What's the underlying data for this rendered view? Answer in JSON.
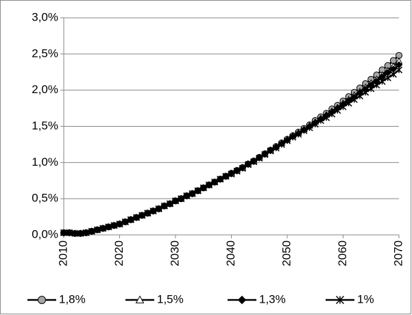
{
  "chart_data": {
    "type": "line",
    "x": [
      2010,
      2011,
      2012,
      2013,
      2014,
      2015,
      2016,
      2017,
      2018,
      2019,
      2020,
      2021,
      2022,
      2023,
      2024,
      2025,
      2026,
      2027,
      2028,
      2029,
      2030,
      2031,
      2032,
      2033,
      2034,
      2035,
      2036,
      2037,
      2038,
      2039,
      2040,
      2041,
      2042,
      2043,
      2044,
      2045,
      2046,
      2047,
      2048,
      2049,
      2050,
      2051,
      2052,
      2053,
      2054,
      2055,
      2056,
      2057,
      2058,
      2059,
      2060,
      2061,
      2062,
      2063,
      2064,
      2065,
      2066,
      2067,
      2068,
      2069,
      2070
    ],
    "xlim": [
      2010,
      2070
    ],
    "xticks": [
      2010,
      2020,
      2030,
      2040,
      2050,
      2060,
      2070
    ],
    "ylim": [
      0,
      3
    ],
    "yticks": [
      {
        "value": 0,
        "label": "0,0%"
      },
      {
        "value": 0.5,
        "label": "0,5%"
      },
      {
        "value": 1,
        "label": "1,0%"
      },
      {
        "value": 1.5,
        "label": "1,5%"
      },
      {
        "value": 2,
        "label": "2,0%"
      },
      {
        "value": 2.5,
        "label": "2,5%"
      },
      {
        "value": 3,
        "label": "3,0%"
      }
    ],
    "grid": true,
    "legend": "bottom",
    "series": [
      {
        "name": "1,8%",
        "color": "#000000",
        "marker": "circle",
        "marker_fill": "#a6a6a6",
        "values": [
          0.03,
          0.03,
          0.02,
          0.02,
          0.03,
          0.05,
          0.07,
          0.09,
          0.11,
          0.13,
          0.15,
          0.18,
          0.21,
          0.24,
          0.27,
          0.3,
          0.33,
          0.36,
          0.4,
          0.43,
          0.47,
          0.5,
          0.54,
          0.57,
          0.61,
          0.65,
          0.69,
          0.73,
          0.77,
          0.81,
          0.85,
          0.89,
          0.93,
          0.98,
          1.02,
          1.07,
          1.12,
          1.17,
          1.22,
          1.27,
          1.32,
          1.37,
          1.42,
          1.47,
          1.52,
          1.58,
          1.63,
          1.68,
          1.74,
          1.79,
          1.85,
          1.91,
          1.97,
          2.03,
          2.09,
          2.15,
          2.21,
          2.28,
          2.34,
          2.41,
          2.48
        ]
      },
      {
        "name": "1,5%",
        "color": "#000000",
        "marker": "triangle",
        "marker_fill": "#ffffff",
        "values": [
          0.03,
          0.03,
          0.02,
          0.02,
          0.03,
          0.05,
          0.07,
          0.09,
          0.11,
          0.13,
          0.15,
          0.18,
          0.21,
          0.24,
          0.27,
          0.3,
          0.33,
          0.36,
          0.4,
          0.43,
          0.47,
          0.5,
          0.54,
          0.57,
          0.61,
          0.65,
          0.69,
          0.73,
          0.77,
          0.81,
          0.85,
          0.89,
          0.93,
          0.98,
          1.02,
          1.07,
          1.12,
          1.17,
          1.22,
          1.27,
          1.32,
          1.37,
          1.41,
          1.46,
          1.51,
          1.56,
          1.61,
          1.66,
          1.71,
          1.76,
          1.82,
          1.87,
          1.93,
          1.98,
          2.04,
          2.1,
          2.15,
          2.21,
          2.27,
          2.33,
          2.4
        ]
      },
      {
        "name": "1,3%",
        "color": "#000000",
        "marker": "diamond",
        "marker_fill": "#000000",
        "values": [
          0.03,
          0.03,
          0.02,
          0.02,
          0.03,
          0.05,
          0.07,
          0.09,
          0.11,
          0.13,
          0.15,
          0.18,
          0.21,
          0.24,
          0.27,
          0.3,
          0.33,
          0.36,
          0.4,
          0.43,
          0.47,
          0.5,
          0.54,
          0.57,
          0.61,
          0.65,
          0.69,
          0.73,
          0.77,
          0.81,
          0.85,
          0.89,
          0.93,
          0.98,
          1.02,
          1.07,
          1.12,
          1.17,
          1.21,
          1.26,
          1.31,
          1.36,
          1.4,
          1.45,
          1.5,
          1.55,
          1.6,
          1.65,
          1.7,
          1.75,
          1.8,
          1.85,
          1.9,
          1.96,
          2.01,
          2.07,
          2.12,
          2.18,
          2.24,
          2.29,
          2.35
        ]
      },
      {
        "name": "1%",
        "color": "#000000",
        "marker": "asterisk",
        "marker_fill": "#000000",
        "values": [
          0.03,
          0.03,
          0.02,
          0.02,
          0.03,
          0.05,
          0.07,
          0.09,
          0.11,
          0.13,
          0.15,
          0.18,
          0.21,
          0.24,
          0.27,
          0.3,
          0.33,
          0.36,
          0.4,
          0.43,
          0.47,
          0.5,
          0.54,
          0.57,
          0.61,
          0.65,
          0.69,
          0.73,
          0.77,
          0.81,
          0.84,
          0.88,
          0.92,
          0.97,
          1.01,
          1.06,
          1.11,
          1.16,
          1.2,
          1.25,
          1.3,
          1.35,
          1.39,
          1.44,
          1.48,
          1.53,
          1.58,
          1.62,
          1.67,
          1.72,
          1.77,
          1.82,
          1.87,
          1.92,
          1.97,
          2.02,
          2.07,
          2.12,
          2.17,
          2.22,
          2.28
        ]
      }
    ]
  }
}
